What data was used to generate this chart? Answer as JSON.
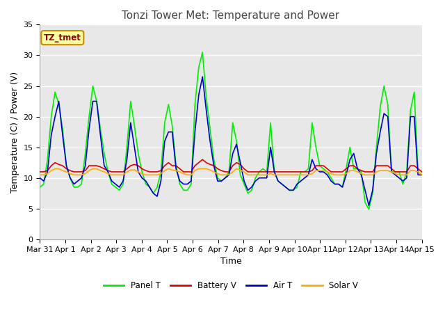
{
  "title": "Tonzi Tower Met: Temperature and Power",
  "xlabel": "Time",
  "ylabel": "Temperature (C) / Power (V)",
  "ylim": [
    0,
    35
  ],
  "annotation": "TZ_tmet",
  "legend_labels": [
    "Panel T",
    "Battery V",
    "Air T",
    "Solar V"
  ],
  "legend_colors": [
    "#00ee00",
    "#dd0000",
    "#0000cc",
    "#ffaa00"
  ],
  "xtick_labels": [
    "Mar 31",
    "Apr 1",
    "Apr 2",
    "Apr 3",
    "Apr 4",
    "Apr 5",
    "Apr 6",
    "Apr 7",
    "Apr 8",
    "Apr 9",
    "Apr 10",
    "Apr 11",
    "Apr 12",
    "Apr 13",
    "Apr 14",
    "Apr 15"
  ],
  "fig_bg": "#ffffff",
  "plot_bg": "#e8e8e8",
  "grid_color": "#ffffff",
  "title_fontsize": 11,
  "axis_label_fontsize": 9,
  "tick_fontsize": 8,
  "panel_t": [
    8.5,
    9.0,
    13.0,
    20.0,
    24.0,
    22.0,
    18.0,
    12.0,
    10.0,
    8.5,
    8.5,
    9.0,
    14.0,
    20.0,
    25.0,
    22.5,
    18.0,
    14.0,
    11.0,
    9.0,
    8.5,
    8.0,
    9.0,
    15.0,
    22.5,
    18.5,
    14.0,
    11.0,
    9.0,
    8.5,
    7.5,
    8.5,
    11.0,
    19.0,
    22.0,
    18.5,
    12.0,
    9.0,
    8.0,
    8.0,
    9.0,
    22.0,
    28.0,
    30.5,
    23.0,
    18.0,
    13.0,
    10.0,
    9.5,
    10.0,
    11.0,
    19.0,
    16.0,
    10.5,
    9.0,
    7.5,
    8.0,
    10.0,
    11.0,
    11.5,
    11.0,
    19.0,
    11.0,
    9.5,
    9.0,
    8.5,
    8.0,
    8.0,
    8.5,
    11.0,
    11.0,
    11.5,
    19.0,
    15.0,
    12.0,
    11.5,
    11.0,
    10.0,
    9.0,
    9.0,
    8.5,
    11.5,
    15.0,
    11.5,
    11.5,
    11.0,
    6.0,
    4.9,
    7.5,
    15.0,
    21.5,
    25.0,
    22.0,
    11.0,
    11.0,
    11.0,
    9.0,
    11.0,
    21.0,
    24.0,
    11.0,
    10.5
  ],
  "battery_v": [
    11.0,
    11.0,
    11.2,
    12.0,
    12.5,
    12.2,
    12.0,
    11.5,
    11.2,
    11.0,
    11.0,
    11.0,
    11.2,
    12.0,
    12.0,
    12.0,
    11.8,
    11.5,
    11.2,
    11.0,
    11.0,
    11.0,
    11.0,
    11.5,
    12.0,
    12.2,
    12.0,
    11.5,
    11.2,
    11.0,
    11.0,
    11.0,
    11.2,
    12.0,
    12.5,
    12.0,
    12.0,
    11.5,
    11.0,
    11.0,
    11.0,
    12.0,
    12.5,
    13.0,
    12.5,
    12.2,
    12.0,
    11.5,
    11.2,
    11.0,
    11.0,
    12.0,
    12.5,
    12.2,
    11.5,
    11.0,
    11.0,
    11.0,
    11.0,
    11.0,
    11.0,
    11.0,
    11.0,
    11.0,
    11.0,
    11.0,
    11.0,
    11.0,
    11.0,
    11.0,
    11.0,
    11.0,
    11.2,
    12.0,
    12.0,
    12.0,
    11.5,
    11.0,
    11.0,
    11.0,
    11.0,
    11.5,
    12.0,
    12.0,
    11.5,
    11.2,
    11.0,
    11.0,
    11.0,
    12.0,
    12.0,
    12.0,
    12.0,
    11.5,
    11.0,
    11.0,
    11.0,
    11.0,
    12.0,
    12.0,
    11.5,
    11.0
  ],
  "air_t": [
    10.0,
    9.5,
    11.0,
    17.0,
    20.0,
    22.5,
    17.0,
    12.0,
    10.0,
    9.0,
    9.5,
    10.0,
    12.0,
    18.0,
    22.5,
    22.5,
    17.0,
    12.0,
    11.0,
    9.5,
    9.0,
    8.5,
    9.5,
    13.0,
    19.0,
    15.0,
    11.0,
    10.0,
    9.5,
    8.5,
    7.5,
    7.0,
    9.5,
    16.0,
    17.5,
    17.5,
    11.5,
    9.5,
    9.0,
    9.0,
    9.5,
    17.5,
    23.5,
    26.5,
    21.0,
    16.0,
    12.0,
    9.5,
    9.5,
    10.0,
    10.5,
    14.0,
    15.5,
    12.5,
    9.5,
    8.0,
    8.5,
    9.5,
    10.0,
    10.0,
    10.0,
    15.0,
    11.0,
    9.5,
    9.0,
    8.5,
    8.0,
    8.0,
    9.0,
    9.5,
    10.0,
    10.5,
    13.0,
    11.5,
    11.0,
    11.0,
    10.5,
    9.5,
    9.0,
    9.0,
    8.5,
    10.5,
    13.0,
    14.0,
    11.5,
    10.5,
    8.0,
    5.5,
    8.0,
    14.0,
    17.5,
    20.5,
    20.0,
    11.0,
    10.5,
    10.0,
    9.5,
    10.0,
    20.0,
    20.0,
    10.5,
    10.5
  ],
  "solar_v": [
    10.5,
    10.5,
    10.7,
    11.2,
    11.5,
    11.5,
    11.2,
    11.0,
    10.7,
    10.5,
    10.5,
    10.5,
    10.7,
    11.2,
    11.5,
    11.5,
    11.2,
    11.0,
    10.7,
    10.5,
    10.5,
    10.5,
    10.5,
    11.0,
    11.3,
    11.3,
    11.0,
    10.7,
    10.5,
    10.5,
    10.5,
    10.5,
    10.7,
    11.2,
    11.5,
    11.3,
    11.2,
    11.0,
    10.7,
    10.5,
    10.5,
    11.2,
    11.5,
    11.5,
    11.5,
    11.3,
    11.0,
    10.7,
    10.5,
    10.5,
    10.5,
    11.0,
    11.5,
    11.3,
    11.0,
    10.5,
    10.5,
    10.5,
    10.5,
    10.5,
    10.5,
    10.7,
    10.5,
    10.5,
    10.5,
    10.5,
    10.5,
    10.5,
    10.5,
    10.5,
    10.5,
    10.5,
    10.7,
    11.2,
    11.2,
    11.2,
    11.0,
    10.7,
    10.5,
    10.5,
    10.5,
    10.7,
    11.2,
    11.2,
    11.0,
    10.7,
    10.5,
    10.5,
    10.5,
    11.0,
    11.2,
    11.2,
    11.2,
    11.0,
    10.7,
    10.5,
    10.5,
    10.5,
    11.2,
    11.2,
    11.0,
    10.5
  ]
}
